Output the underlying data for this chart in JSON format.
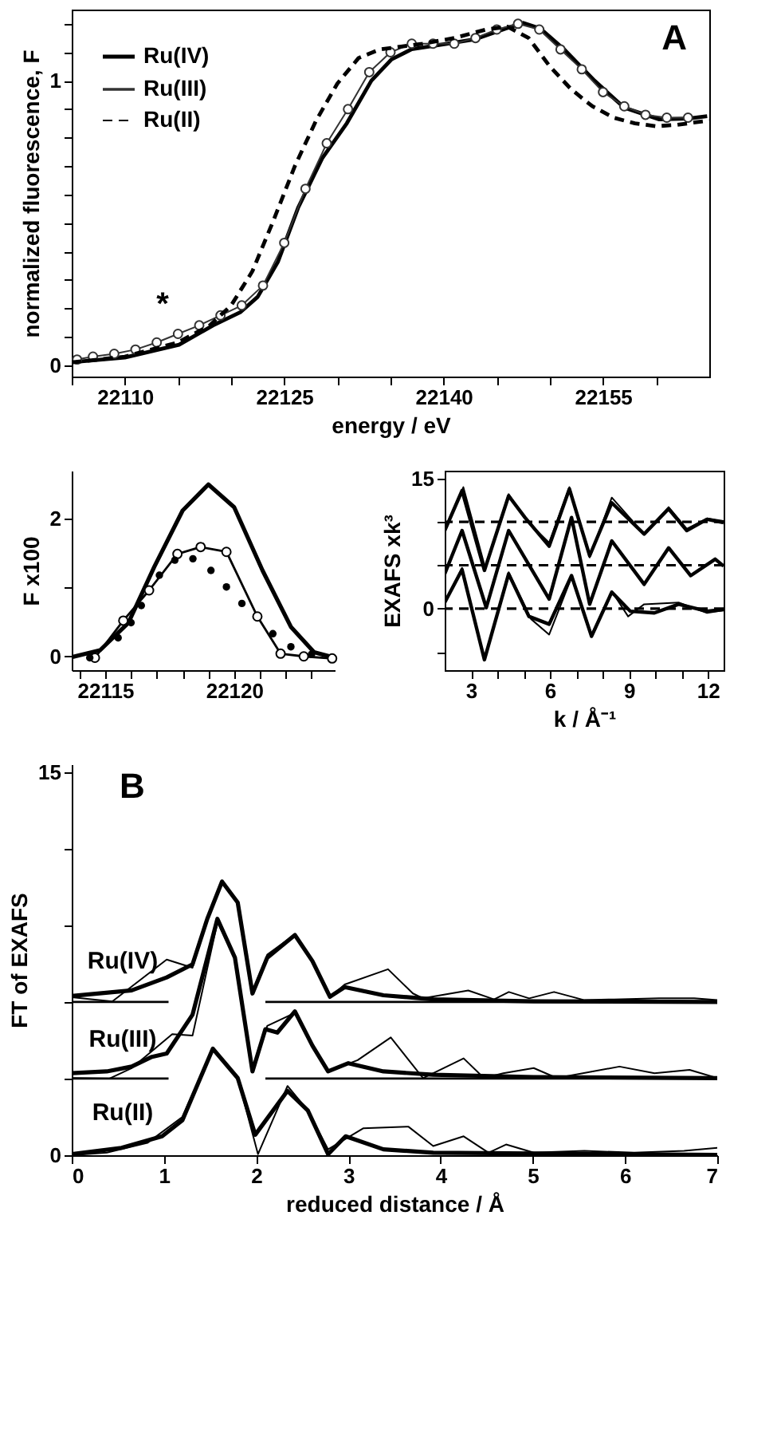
{
  "chart_data": [
    {
      "type": "line",
      "xlabel": "energy / eV",
      "ylabel": "normalized fluorescence, F",
      "legend": "top left",
      "xlim": [
        22105,
        22165
      ],
      "xticks": [
        {
          "value": 22105,
          "label": null
        },
        22110,
        {
          "value": 22115,
          "label": null
        },
        {
          "value": 22120,
          "label": null
        },
        22125,
        {
          "value": 22130,
          "label": null
        },
        {
          "value": 22135,
          "label": null
        },
        22140,
        {
          "value": 22145,
          "label": null
        },
        {
          "value": 22150,
          "label": null
        },
        22155,
        {
          "value": 22160,
          "label": null
        }
      ],
      "ylim": [
        -0.04,
        1.25
      ],
      "yticks": [
        0,
        {
          "value": 0.1,
          "label": null
        },
        {
          "value": 0.2,
          "label": null
        },
        {
          "value": 0.3,
          "label": null
        },
        {
          "value": 0.4,
          "label": null
        },
        {
          "value": 0.5,
          "label": null
        },
        {
          "value": 0.6,
          "label": null
        },
        {
          "value": 0.7,
          "label": null
        },
        {
          "value": 0.8,
          "label": null
        },
        {
          "value": 0.9,
          "label": null
        },
        1,
        {
          "value": 1.1,
          "label": null
        },
        {
          "value": 1.2,
          "label": null
        }
      ],
      "annotations": [
        "A",
        "*"
      ],
      "series": [
        {
          "name": "Ru(IV)",
          "color": "#000000",
          "line_style": "solid",
          "x": [
            22105.1,
            22110,
            22115.1,
            22118.3,
            22120.9,
            22122.5,
            22124.4,
            22126.3,
            22128.6,
            22130.9,
            22133.2,
            22135.1,
            22137,
            22140.2,
            22143,
            22145.8,
            22147.5,
            22149.1,
            22151.4,
            22154.2,
            22157,
            22160.3,
            22163,
            22164.8
          ],
          "values": [
            0.011,
            0.027,
            0.072,
            0.14,
            0.187,
            0.24,
            0.363,
            0.553,
            0.729,
            0.851,
            1.0,
            1.075,
            1.111,
            1.129,
            1.146,
            1.183,
            1.203,
            1.183,
            1.108,
            1.0,
            0.905,
            0.864,
            0.867,
            0.875
          ]
        },
        {
          "name": "Ru(III)",
          "color": "#333333",
          "line_style": "solid",
          "marker": "circle",
          "x": [
            22105.5,
            22107,
            22109,
            22111,
            22113,
            22115,
            22117,
            22119,
            22121,
            22123,
            22125,
            22127,
            22129,
            22131,
            22133,
            22135,
            22137,
            22139,
            22141,
            22143,
            22145,
            22147,
            22149,
            22151,
            22153,
            22155,
            22157,
            22159,
            22161,
            22163
          ],
          "values": [
            0.02,
            0.03,
            0.04,
            0.055,
            0.08,
            0.11,
            0.14,
            0.175,
            0.21,
            0.28,
            0.43,
            0.62,
            0.78,
            0.9,
            1.03,
            1.1,
            1.13,
            1.13,
            1.13,
            1.15,
            1.18,
            1.2,
            1.18,
            1.11,
            1.04,
            0.96,
            0.91,
            0.88,
            0.87,
            0.87
          ]
        },
        {
          "name": "Ru(II)",
          "color": "#000000",
          "line_style": "dashed",
          "x": [
            22105,
            22110,
            22115,
            22118,
            22120,
            22122,
            22124,
            22126,
            22128,
            22130,
            22132,
            22134,
            22136,
            22138,
            22141,
            22144,
            22146,
            22148,
            22150,
            22152,
            22154,
            22156,
            22158,
            22160,
            22162,
            22165
          ],
          "values": [
            0.01,
            0.03,
            0.08,
            0.14,
            0.21,
            0.33,
            0.51,
            0.7,
            0.86,
            0.99,
            1.08,
            1.11,
            1.12,
            1.13,
            1.15,
            1.18,
            1.19,
            1.15,
            1.05,
            0.97,
            0.91,
            0.87,
            0.85,
            0.84,
            0.845,
            0.86
          ]
        }
      ]
    },
    {
      "type": "line",
      "ylabel": "F x100",
      "xlim": [
        22113.7,
        22123.9
      ],
      "xticks": [
        {
          "value": 22114,
          "label": null
        },
        22115,
        {
          "value": 22116,
          "label": null
        },
        {
          "value": 22117,
          "label": null
        },
        {
          "value": 22118,
          "label": null
        },
        {
          "value": 22119,
          "label": null
        },
        22120,
        {
          "value": 22121,
          "label": null
        },
        {
          "value": 22122,
          "label": null
        },
        {
          "value": 22123,
          "label": null
        }
      ],
      "ylim": [
        -0.2,
        2.7
      ],
      "yticks": [
        0,
        {
          "value": 1,
          "label": null
        },
        2
      ],
      "series": [
        {
          "color": "#000000",
          "line_style": "solid",
          "x": [
            22113.7,
            22114.8,
            22115.9,
            22116.9,
            22118.0,
            22119.0,
            22120.0,
            22121.1,
            22122.2,
            22123.1,
            22123.8
          ],
          "values": [
            -0.01,
            0.09,
            0.49,
            1.3,
            2.12,
            2.5,
            2.17,
            1.25,
            0.43,
            0.06,
            -0.01
          ]
        },
        {
          "color": "#000000",
          "line_style": "solid",
          "marker": "circle",
          "x": [
            22114.6,
            22115.7,
            22116.7,
            22117.8,
            22118.7,
            22119.7,
            22120.9,
            22121.8,
            22122.7,
            22123.8
          ],
          "values": [
            -0.02,
            0.52,
            0.96,
            1.49,
            1.59,
            1.52,
            0.58,
            0.04,
            0.0,
            -0.03
          ]
        },
        {
          "type": "scatter",
          "color": "#000000",
          "marker": "circle",
          "x": [
            22114.4,
            22115.5,
            22116.0,
            22116.4,
            22117.1,
            22117.7,
            22118.4,
            22119.1,
            22119.7,
            22120.3,
            22121.5,
            22122.2,
            22123.0
          ],
          "values": [
            -0.02,
            0.27,
            0.49,
            0.74,
            1.18,
            1.4,
            1.42,
            1.25,
            1.01,
            0.77,
            0.33,
            0.14,
            0.03
          ]
        }
      ]
    },
    {
      "type": "line",
      "xlabel": "reduced distance / Å",
      "ylabel": "FT of EXAFS",
      "xlim": [
        0,
        7
      ],
      "xticks": [
        0,
        1,
        2,
        3,
        4,
        5,
        6,
        7
      ],
      "ylim": [
        0,
        15.3
      ],
      "yticks": [
        0,
        {
          "value": 3,
          "label": null
        },
        {
          "value": 6,
          "label": null
        },
        {
          "value": 9,
          "label": null
        },
        {
          "value": 12,
          "label": null
        },
        15
      ],
      "annotations": [
        "B",
        "Ru(IV)",
        "Ru(III)",
        "Ru(II)"
      ],
      "series": [
        {
          "color": "#000000",
          "x": [
            0,
            0.65,
            1.03,
            1.31,
            1.47,
            1.63,
            1.8,
            1.96,
            2.12,
            2.42,
            2.61,
            2.8,
            2.96,
            3.38,
            3.92,
            5.01,
            7
          ],
          "values": [
            6.23,
            6.45,
            6.96,
            7.47,
            9.25,
            10.71,
            9.89,
            6.33,
            7.73,
            8.62,
            7.6,
            6.2,
            6.58,
            6.26,
            6.1,
            6.02,
            6.0
          ]
        },
        {
          "color": "#000000",
          "x": [
            0,
            0.44,
            1.03,
            1.31,
            1.47,
            1.63,
            1.8,
            1.96,
            2.12,
            2.42,
            2.61,
            2.8,
            2.96,
            3.43,
            3.7,
            3.81,
            4.3,
            4.58,
            4.74,
            4.96,
            5.23,
            5.56,
            5.88,
            6.37,
            6.75,
            7
          ],
          "values": [
            6.18,
            6.02,
            7.66,
            7.34,
            9.25,
            10.71,
            9.89,
            6.39,
            7.85,
            8.64,
            7.6,
            6.18,
            6.68,
            7.28,
            6.33,
            6.14,
            6.45,
            6.1,
            6.39,
            6.14,
            6.39,
            6.07,
            6.1,
            6.14,
            6.14,
            6.07
          ]
        },
        {
          "color": "#000000",
          "x": [
            0,
            0.38,
            0.65,
            0.87,
            1.03,
            1.31,
            1.58,
            1.77,
            1.96,
            2.1,
            2.23,
            2.42,
            2.61,
            2.78,
            3.0,
            3.38,
            3.92,
            5.01,
            7
          ],
          "values": [
            3.21,
            3.28,
            3.47,
            3.85,
            3.98,
            5.5,
            9.25,
            7.73,
            3.28,
            4.93,
            4.8,
            5.63,
            4.29,
            3.28,
            3.6,
            3.28,
            3.15,
            3.06,
            3.02
          ]
        },
        {
          "color": "#000000",
          "x": [
            0,
            0.41,
            0.65,
            1.09,
            1.31,
            1.58,
            1.77,
            1.96,
            2.12,
            2.42,
            2.61,
            2.78,
            3.1,
            3.46,
            3.81,
            4.25,
            4.47,
            4.68,
            5.01,
            5.26,
            5.94,
            6.32,
            6.7,
            7
          ],
          "values": [
            3.02,
            3.0,
            3.41,
            4.74,
            4.68,
            9.12,
            7.73,
            3.28,
            5.06,
            5.57,
            4.29,
            3.28,
            3.72,
            4.61,
            3.02,
            3.79,
            3.02,
            3.21,
            3.41,
            3.02,
            3.47,
            3.21,
            3.34,
            3.02
          ]
        },
        {
          "color": "#000000",
          "x": [
            0,
            0.54,
            0.98,
            1.2,
            1.53,
            1.8,
            1.99,
            2.34,
            2.56,
            2.78,
            2.97,
            3.38,
            3.92,
            7
          ],
          "values": [
            0.04,
            0.29,
            0.74,
            1.37,
            4.17,
            3.02,
            0.8,
            2.52,
            1.75,
            0.04,
            0.74,
            0.23,
            0.1,
            0.01
          ]
        },
        {
          "color": "#000000",
          "x": [
            0,
            0.38,
            0.82,
            1.2,
            1.53,
            1.8,
            2.02,
            2.34,
            2.56,
            2.78,
            3.16,
            3.65,
            3.92,
            4.25,
            4.52,
            4.71,
            5.01,
            5.56,
            6.1,
            6.64,
            7
          ],
          "values": [
            0,
            0.1,
            0.48,
            1.5,
            4.17,
            3.02,
            0.04,
            2.71,
            1.75,
            0.23,
            1.05,
            1.12,
            0.36,
            0.74,
            0.1,
            0.42,
            0.1,
            0.17,
            0.1,
            0.17,
            0.29
          ]
        },
        {
          "color": "#000000",
          "x": [
            0,
            1.05
          ],
          "values": [
            6,
            6
          ]
        },
        {
          "color": "#000000",
          "x": [
            2.1,
            7
          ],
          "values": [
            6,
            6
          ]
        },
        {
          "color": "#000000",
          "x": [
            0,
            1.05
          ],
          "values": [
            3,
            3
          ]
        },
        {
          "color": "#000000",
          "x": [
            2.1,
            7
          ],
          "values": [
            3,
            3
          ]
        }
      ]
    },
    {
      "type": "line",
      "xlabel": "k / Å⁻¹",
      "ylabel": "EXAFS xk³",
      "xlim": [
        2,
        12.6
      ],
      "xticks": [
        3,
        {
          "value": 4,
          "label": null
        },
        {
          "value": 5,
          "label": null
        },
        6,
        {
          "value": 7,
          "label": null
        },
        {
          "value": 8,
          "label": null
        },
        9,
        {
          "value": 10,
          "label": null
        },
        {
          "value": 11,
          "label": null
        },
        12
      ],
      "ylim": [
        -7.1,
        15.9
      ],
      "yticks": [
        {
          "value": -5,
          "label": null
        },
        0,
        {
          "value": 5,
          "label": null
        },
        {
          "value": 10,
          "label": null
        },
        15
      ],
      "ref_lines": [
        {
          "axis": "y",
          "value": 0,
          "line_style": "dashed"
        },
        {
          "axis": "y",
          "value": 5,
          "line_style": "dashed"
        },
        {
          "axis": "y",
          "value": 10,
          "line_style": "dashed"
        }
      ],
      "series": [
        {
          "color": "#000000",
          "x": [
            2.0,
            2.66,
            3.51,
            4.43,
            5.05,
            5.97,
            6.74,
            7.51,
            8.35,
            9.58,
            10.51,
            11.2,
            11.97,
            12.6
          ],
          "values": [
            9.0,
            13.6,
            4.4,
            13.0,
            10.5,
            7.2,
            13.8,
            6.1,
            12.2,
            8.6,
            11.5,
            9.0,
            10.3,
            9.9
          ]
        },
        {
          "color": "#000000",
          "x": [
            2.0,
            2.71,
            3.54,
            4.43,
            5.12,
            5.97,
            6.74,
            7.51,
            8.35,
            9.58,
            10.51,
            11.2,
            11.97,
            12.6
          ],
          "values": [
            9.0,
            14.0,
            4.7,
            13.2,
            10.1,
            7.6,
            14.0,
            5.9,
            12.8,
            8.6,
            11.7,
            9.2,
            10.4,
            10.1
          ]
        },
        {
          "color": "#000000",
          "x": [
            2.0,
            2.66,
            3.58,
            4.43,
            5.97,
            6.82,
            7.51,
            8.35,
            9.58,
            10.51,
            11.35,
            12.28,
            12.6
          ],
          "values": [
            4.0,
            9.0,
            0.1,
            9.0,
            1.1,
            10.5,
            0.5,
            7.8,
            2.8,
            7.0,
            3.8,
            5.7,
            4.9
          ]
        },
        {
          "color": "#000000",
          "x": [
            2.0,
            2.66,
            3.51,
            4.43,
            5.2,
            5.97,
            6.82,
            7.58,
            8.35,
            9.05,
            9.97,
            10.89,
            11.97,
            12.6
          ],
          "values": [
            0.7,
            4.5,
            -5.9,
            4.0,
            -0.9,
            -1.8,
            3.8,
            -3.2,
            1.9,
            -0.3,
            -0.5,
            0.5,
            -0.3,
            -0.1
          ]
        },
        {
          "color": "#000000",
          "x": [
            2.0,
            2.66,
            3.51,
            4.43,
            5.28,
            5.97,
            6.82,
            7.58,
            8.35,
            8.97,
            9.58,
            10.89,
            11.97,
            12.6
          ],
          "values": [
            0.7,
            4.7,
            -6.0,
            4.2,
            -1.2,
            -3.0,
            3.6,
            -3.0,
            2.0,
            -0.9,
            0.5,
            0.7,
            -0.5,
            -0.2
          ]
        }
      ]
    }
  ]
}
